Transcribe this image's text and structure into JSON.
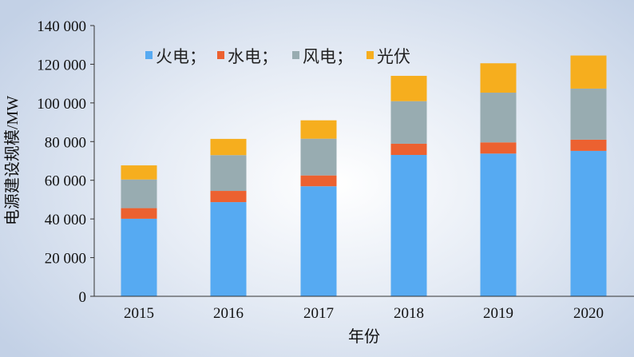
{
  "chart_data": {
    "type": "bar",
    "stacked": true,
    "xlabel": "年份",
    "ylabel": "电源建设规模/MW",
    "ylim": [
      0,
      140000
    ],
    "yticks": [
      "0",
      "20 000",
      "40 000",
      "60 000",
      "80 000",
      "100 000",
      "120 000",
      "140 000"
    ],
    "categories": [
      "2015",
      "2016",
      "2017",
      "2018",
      "2019",
      "2020"
    ],
    "legend_position": "top-left",
    "grid": false,
    "series": [
      {
        "name": "火电；",
        "color": "#56aaf2",
        "values": [
          40100,
          48700,
          56900,
          73100,
          73800,
          75200
        ]
      },
      {
        "name": "水电；",
        "color": "#ec6130",
        "values": [
          5500,
          5800,
          5600,
          5800,
          5800,
          5800
        ]
      },
      {
        "name": "风电；",
        "color": "#98acb1",
        "values": [
          14800,
          18500,
          19000,
          22000,
          25700,
          26400
        ]
      },
      {
        "name": "光伏",
        "color": "#f6ae1e",
        "values": [
          7300,
          8400,
          9500,
          13100,
          15200,
          17100
        ]
      }
    ]
  }
}
